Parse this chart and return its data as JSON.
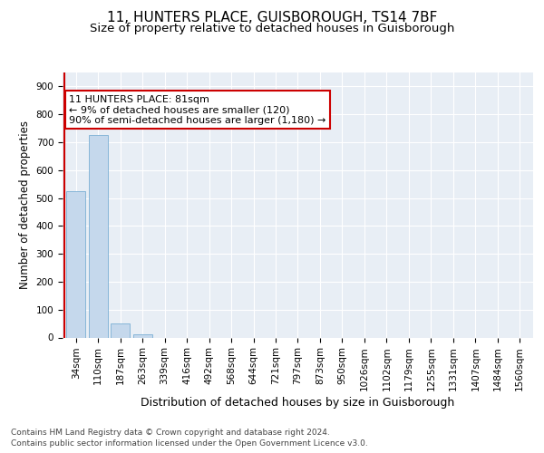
{
  "title1": "11, HUNTERS PLACE, GUISBOROUGH, TS14 7BF",
  "title2": "Size of property relative to detached houses in Guisborough",
  "xlabel": "Distribution of detached houses by size in Guisborough",
  "ylabel": "Number of detached properties",
  "categories": [
    "34sqm",
    "110sqm",
    "187sqm",
    "263sqm",
    "339sqm",
    "416sqm",
    "492sqm",
    "568sqm",
    "644sqm",
    "721sqm",
    "797sqm",
    "873sqm",
    "950sqm",
    "1026sqm",
    "1102sqm",
    "1179sqm",
    "1255sqm",
    "1331sqm",
    "1407sqm",
    "1484sqm",
    "1560sqm"
  ],
  "values": [
    525,
    725,
    50,
    10,
    0,
    0,
    0,
    0,
    0,
    0,
    0,
    0,
    0,
    0,
    0,
    0,
    0,
    0,
    0,
    0,
    0
  ],
  "bar_color": "#c5d8ec",
  "bar_edge_color": "#7bafd4",
  "annotation_text": "11 HUNTERS PLACE: 81sqm\n← 9% of detached houses are smaller (120)\n90% of semi-detached houses are larger (1,180) →",
  "annotation_box_color": "#ffffff",
  "annotation_box_edge_color": "#cc0000",
  "red_line_color": "#cc0000",
  "ylim": [
    0,
    950
  ],
  "yticks": [
    0,
    100,
    200,
    300,
    400,
    500,
    600,
    700,
    800,
    900
  ],
  "footer1": "Contains HM Land Registry data © Crown copyright and database right 2024.",
  "footer2": "Contains public sector information licensed under the Open Government Licence v3.0.",
  "bg_color": "#e8eef5",
  "fig_bg_color": "#ffffff",
  "title1_fontsize": 11,
  "title2_fontsize": 9.5,
  "xlabel_fontsize": 9,
  "ylabel_fontsize": 8.5,
  "tick_fontsize": 7.5,
  "annotation_fontsize": 8,
  "footer_fontsize": 6.5
}
